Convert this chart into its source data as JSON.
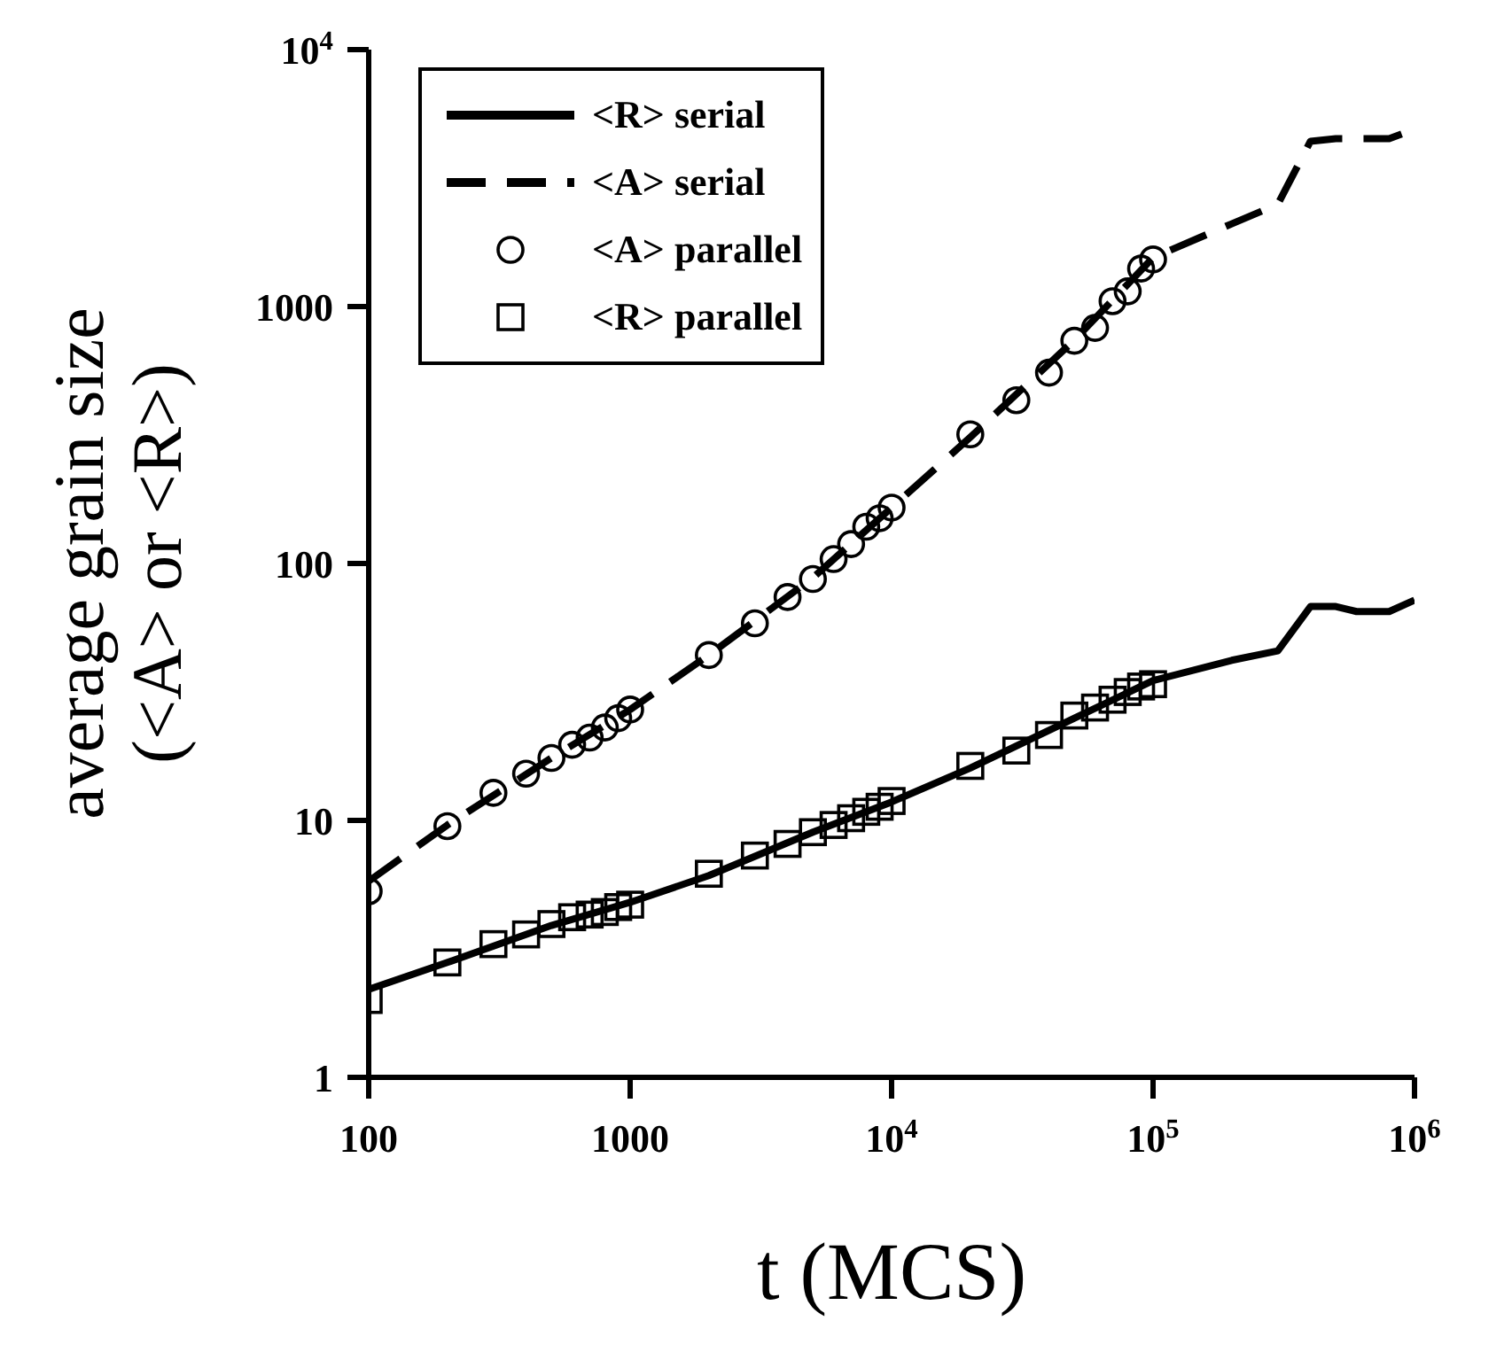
{
  "chart_data": {
    "type": "line",
    "xlabel": "t (MCS)",
    "ylabel": "average grain size\n(<A> or <R>)",
    "log": "xy",
    "xlim": [
      100,
      1000000
    ],
    "ylim": [
      1,
      10000
    ],
    "xticks": [
      100,
      1000,
      {
        "value": 10000,
        "label": "10$^{4}$"
      },
      {
        "value": 100000,
        "label": "10$^{5}$"
      },
      {
        "value": 1000000,
        "label": "10$^{6}$"
      }
    ],
    "yticks": [
      1,
      10,
      100,
      1000,
      {
        "value": 10000,
        "label": "10$^{4}$"
      }
    ],
    "legend": "top left",
    "grid": false,
    "series": [
      {
        "name": "<R> serial",
        "line_style": "solid",
        "marker": "none",
        "color": "#000000",
        "x": [
          100,
          200,
          500,
          1000,
          2000,
          5000,
          10000,
          20000,
          50000,
          100000,
          200000,
          300000,
          400000,
          500000,
          600000,
          800000,
          1000000
        ],
        "values": [
          2.2,
          2.8,
          3.9,
          4.8,
          6.1,
          9.0,
          11.8,
          16,
          25,
          35,
          42,
          45.7,
          68,
          68,
          65,
          65,
          72
        ]
      },
      {
        "name": "<A> serial",
        "line_style": "dashed",
        "marker": "none",
        "color": "#000000",
        "x": [
          100,
          200,
          500,
          1000,
          2000,
          5000,
          10000,
          20000,
          50000,
          100000,
          200000,
          300000,
          400000,
          500000,
          800000,
          1000000
        ],
        "values": [
          5.8,
          9.6,
          17.5,
          27,
          44,
          88,
          165,
          310,
          740,
          1550,
          2100,
          2500,
          4400,
          4500,
          4500,
          4900
        ]
      },
      {
        "name": "<A> parallel",
        "type": "scatter",
        "marker": "circle",
        "color": "#000000",
        "x": [
          100,
          200,
          300,
          400,
          500,
          600,
          700,
          800,
          900,
          1000,
          2000,
          3000,
          4000,
          5000,
          6000,
          7000,
          8000,
          9000,
          10000,
          20000,
          30000,
          40000,
          50000,
          60000,
          70000,
          80000,
          90000,
          100000
        ],
        "values": [
          5.3,
          9.5,
          12.8,
          15.2,
          17.5,
          19.7,
          21,
          23,
          25,
          27,
          44,
          58.5,
          74,
          87,
          104,
          119,
          139,
          150,
          165,
          318,
          432,
          553,
          736,
          826,
          1049,
          1146,
          1405,
          1525
        ]
      },
      {
        "name": "<R> parallel",
        "type": "scatter",
        "marker": "square",
        "color": "#000000",
        "x": [
          100,
          200,
          300,
          400,
          500,
          600,
          700,
          800,
          900,
          1000,
          2000,
          3000,
          4000,
          5000,
          6000,
          7000,
          8000,
          9000,
          10000,
          20000,
          30000,
          40000,
          50000,
          60000,
          70000,
          80000,
          90000,
          100000
        ],
        "values": [
          2.0,
          2.8,
          3.3,
          3.6,
          3.95,
          4.2,
          4.3,
          4.4,
          4.6,
          4.7,
          6.2,
          7.3,
          8.1,
          9.0,
          9.6,
          10.2,
          10.8,
          11.3,
          11.9,
          16.3,
          18.7,
          21.5,
          25.6,
          27.5,
          29.5,
          31.6,
          33.2,
          33.9
        ]
      }
    ]
  }
}
